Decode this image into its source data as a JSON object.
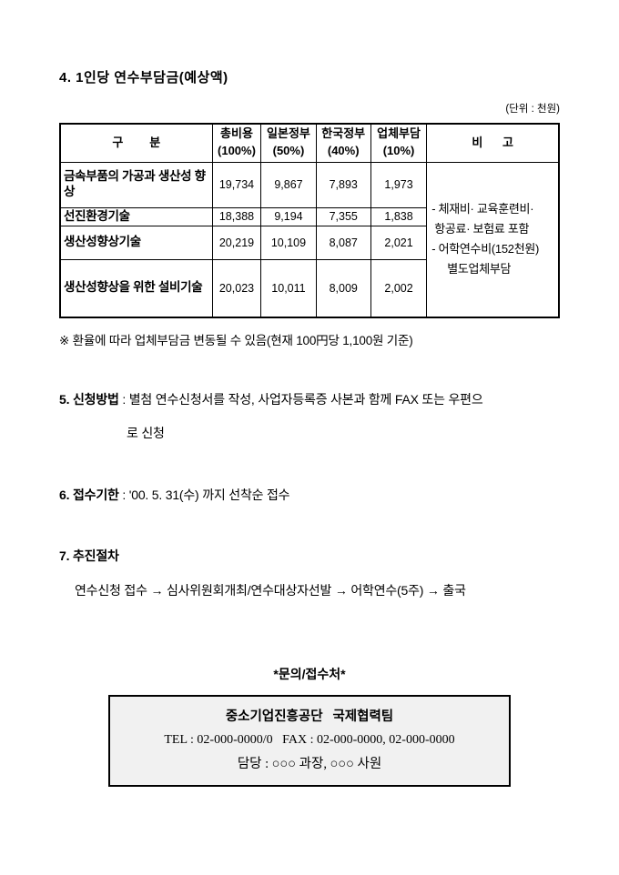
{
  "section4": {
    "title": "4. 1인당 연수부담금(예상액)",
    "unit_note": "(단위 : 천원)"
  },
  "table": {
    "headers": {
      "category": "구        분",
      "total_l1": "총비용",
      "total_l2": "(100%)",
      "japan_l1": "일본정부",
      "japan_l2": "(50%)",
      "korea_l1": "한국정부",
      "korea_l2": "(40%)",
      "company_l1": "업체부담",
      "company_l2": "(10%)",
      "remarks": "비      고"
    },
    "rows": [
      {
        "label": "금속부품의 가공과 생산성 향상",
        "total": "19,734",
        "japan": "9,867",
        "korea": "7,893",
        "company": "1,973"
      },
      {
        "label": "선진환경기술",
        "total": "18,388",
        "japan": "9,194",
        "korea": "7,355",
        "company": "1,838"
      },
      {
        "label": "생산성향상기술",
        "total": "20,219",
        "japan": "10,109",
        "korea": "8,087",
        "company": "2,021"
      },
      {
        "label": "생산성향상을 위한 설비기술",
        "total": "20,023",
        "japan": "10,011",
        "korea": "8,009",
        "company": "2,002"
      }
    ],
    "remarks_lines": [
      "- 체재비·  교육훈련비·",
      "항공료· 보험료 포함",
      "- 어학연수비(152천원)",
      "별도업체부담"
    ]
  },
  "fx_note": "※ 환율에 따라 업체부담금 변동될 수 있음(현재 100円당 1,100원 기준)",
  "section5": {
    "num_title": "5. 신청방법",
    "text": " : 별첨 연수신청서를 작성, 사업자등록증 사본과 함께 FAX 또는 우편으",
    "text_line2": "로 신청"
  },
  "section6": {
    "num_title": "6. 접수기한",
    "text": " : '00. 5. 31(수) 까지 선착순 접수"
  },
  "section7": {
    "num_title": "7. 추진절차",
    "flow": "연수신청 접수 → 심사위원회개최/연수대상자선발 → 어학연수(5주) → 출국"
  },
  "contact": {
    "heading": "*문의/접수처*",
    "org": "중소기업진흥공단   국제협력팀",
    "tel_line": "TEL : 02-000-0000/0   FAX : 02-000-0000, 02-000-0000",
    "manager_line": "담당 : ○○○ 과장, ○○○ 사원"
  }
}
